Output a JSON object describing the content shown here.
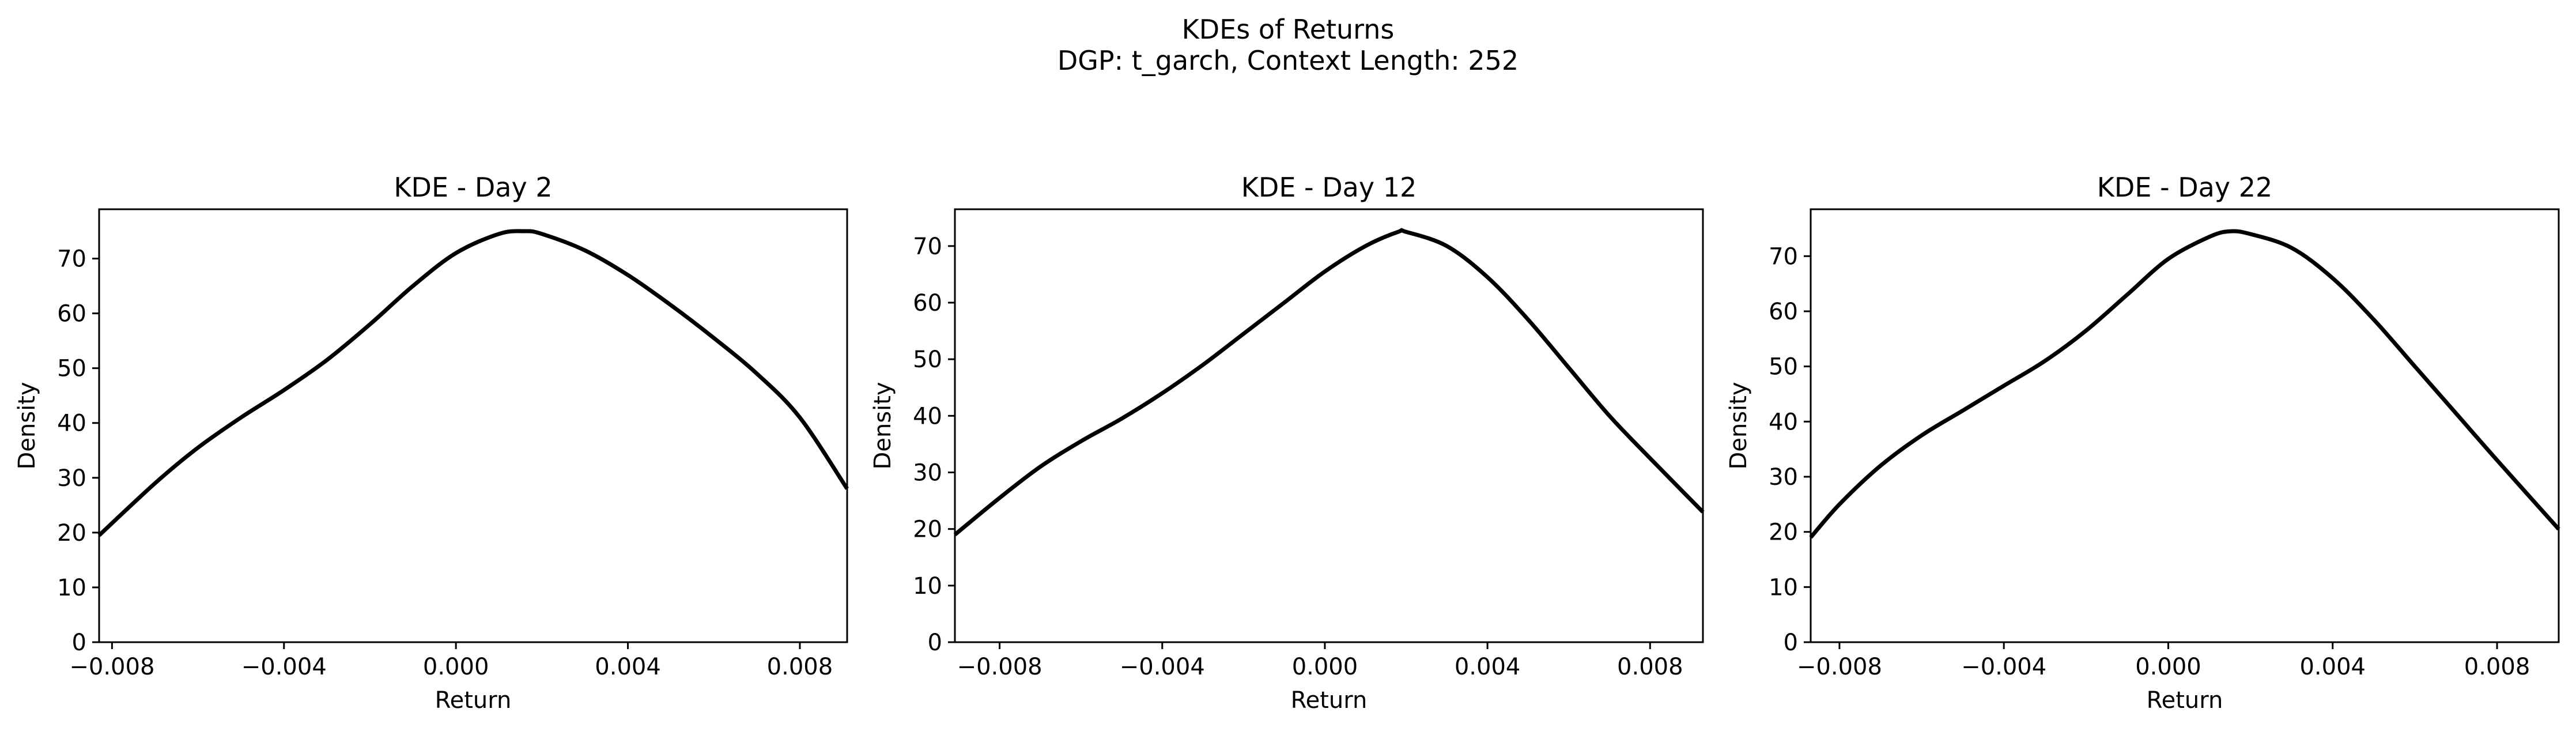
{
  "figure": {
    "title_line1": "KDEs of Returns",
    "title_line2": "DGP: t_garch, Context Length: 252"
  },
  "chart_data": [
    {
      "type": "line",
      "title": "KDE - Day 2",
      "xlabel": "Return",
      "ylabel": "Density",
      "xlim": [
        -0.0083,
        0.0091
      ],
      "ylim": [
        0,
        79
      ],
      "xticks": [
        -0.008,
        -0.004,
        0.0,
        0.004,
        0.008
      ],
      "xtick_labels": [
        "−0.008",
        "−0.004",
        "0.000",
        "0.004",
        "0.008"
      ],
      "yticks": [
        0,
        10,
        20,
        30,
        40,
        50,
        60,
        70
      ],
      "yticks_labels": [
        "0",
        "10",
        "20",
        "30",
        "40",
        "50",
        "60",
        "70"
      ],
      "grid": false,
      "line_color": "#000000",
      "x": [
        -0.0083,
        -0.007,
        -0.006,
        -0.005,
        -0.004,
        -0.003,
        -0.002,
        -0.001,
        0.0,
        0.001,
        0.0016,
        0.002,
        0.003,
        0.004,
        0.005,
        0.006,
        0.007,
        0.008,
        0.0091
      ],
      "y": [
        19.5,
        29.0,
        35.5,
        41.0,
        46.0,
        51.5,
        58.0,
        65.0,
        71.0,
        74.5,
        75.0,
        74.5,
        71.5,
        67.0,
        61.5,
        55.5,
        49.0,
        41.0,
        28.0
      ]
    },
    {
      "type": "line",
      "title": "KDE - Day 12",
      "xlabel": "Return",
      "ylabel": "Density",
      "xlim": [
        -0.0091,
        0.0093
      ],
      "ylim": [
        0,
        76.5
      ],
      "xticks": [
        -0.008,
        -0.004,
        0.0,
        0.004,
        0.008
      ],
      "xtick_labels": [
        "−0.008",
        "−0.004",
        "0.000",
        "0.004",
        "0.008"
      ],
      "yticks": [
        0,
        10,
        20,
        30,
        40,
        50,
        60,
        70
      ],
      "yticks_labels": [
        "0",
        "10",
        "20",
        "30",
        "40",
        "50",
        "60",
        "70"
      ],
      "grid": false,
      "line_color": "#000000",
      "x": [
        -0.0091,
        -0.008,
        -0.007,
        -0.006,
        -0.005,
        -0.004,
        -0.003,
        -0.002,
        -0.001,
        0.0,
        0.001,
        0.0018,
        0.002,
        0.003,
        0.004,
        0.005,
        0.006,
        0.007,
        0.008,
        0.0093
      ],
      "y": [
        19.0,
        25.5,
        31.0,
        35.5,
        39.5,
        44.0,
        49.0,
        54.5,
        60.0,
        65.5,
        70.0,
        72.5,
        72.5,
        70.0,
        64.5,
        57.0,
        48.5,
        40.0,
        32.5,
        23.0
      ]
    },
    {
      "type": "line",
      "title": "KDE - Day 22",
      "xlabel": "Return",
      "ylabel": "Density",
      "xlim": [
        -0.0087,
        0.0095
      ],
      "ylim": [
        0,
        78.5
      ],
      "xticks": [
        -0.008,
        -0.004,
        0.0,
        0.004,
        0.008
      ],
      "xtick_labels": [
        "−0.008",
        "−0.004",
        "0.000",
        "0.004",
        "0.008"
      ],
      "yticks": [
        0,
        10,
        20,
        30,
        40,
        50,
        60,
        70
      ],
      "yticks_labels": [
        "0",
        "10",
        "20",
        "30",
        "40",
        "50",
        "60",
        "70"
      ],
      "grid": false,
      "line_color": "#000000",
      "x": [
        -0.0087,
        -0.008,
        -0.007,
        -0.006,
        -0.005,
        -0.004,
        -0.003,
        -0.002,
        -0.001,
        0.0,
        0.001,
        0.0015,
        0.002,
        0.003,
        0.004,
        0.005,
        0.006,
        0.007,
        0.008,
        0.0095
      ],
      "y": [
        19.0,
        25.0,
        32.0,
        37.5,
        42.0,
        46.5,
        51.0,
        56.5,
        63.0,
        69.5,
        73.5,
        74.5,
        74.0,
        71.5,
        66.0,
        58.5,
        50.0,
        41.5,
        33.0,
        20.5
      ]
    }
  ]
}
